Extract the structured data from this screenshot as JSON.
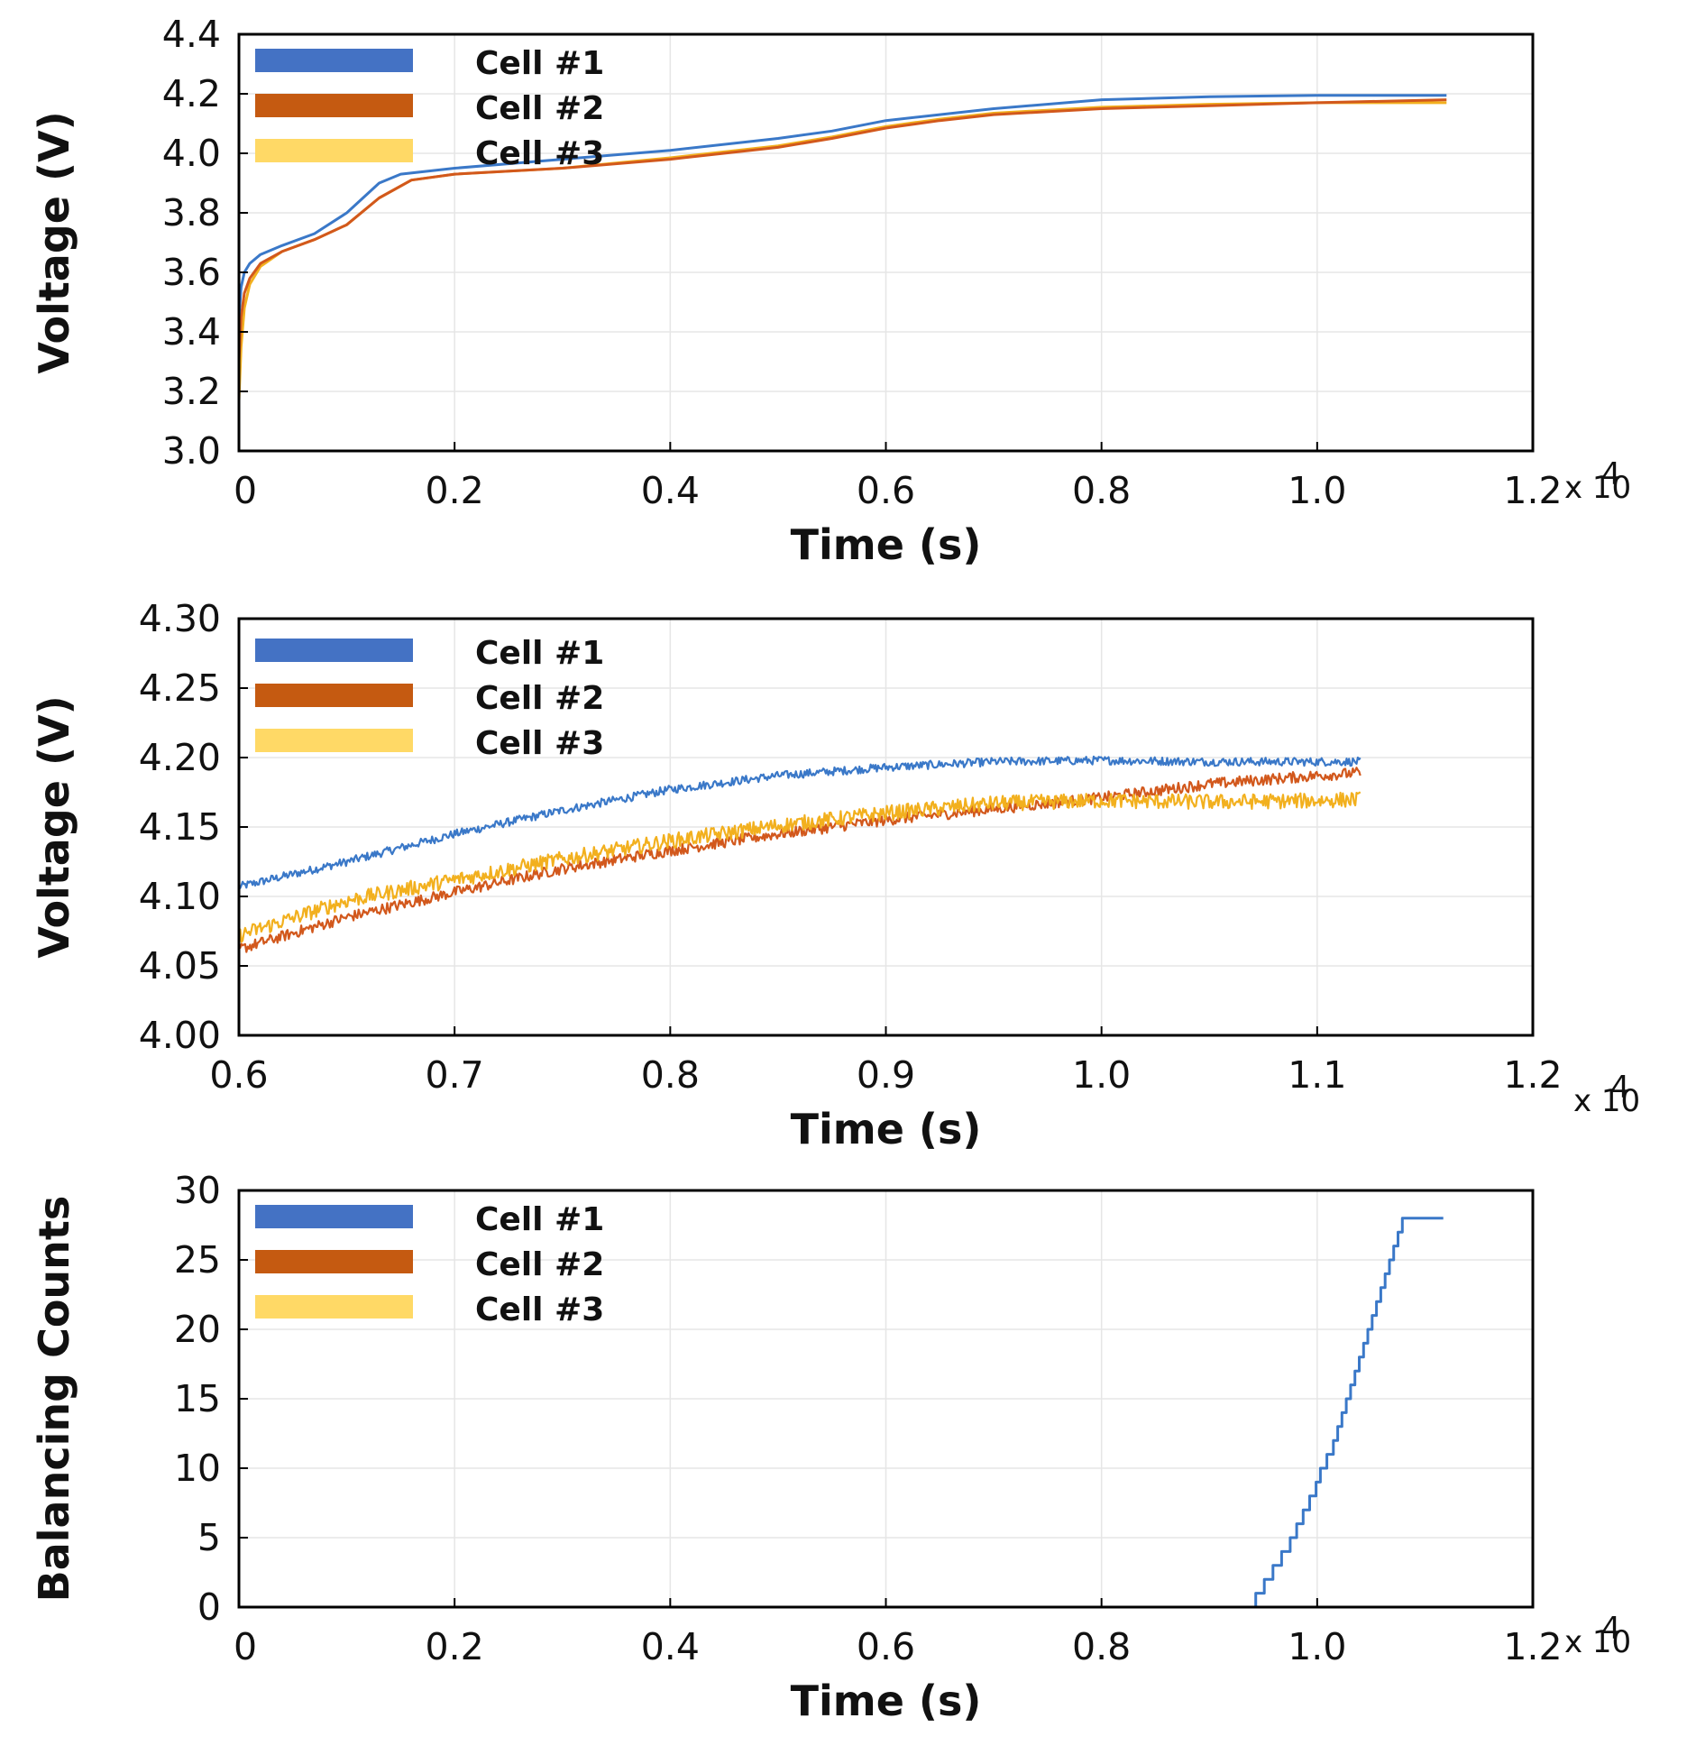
{
  "colors": {
    "cell1": "#3a78c8",
    "cell2": "#d2581c",
    "cell3": "#f2b01e",
    "legend_cell1": "#4472c4",
    "legend_cell2": "#c55a11",
    "legend_cell3": "#ffd966"
  },
  "chart_data": [
    {
      "type": "line",
      "title": "",
      "xlabel": "Time  (s)",
      "ylabel": "Voltage (V)",
      "xlim": [
        0,
        1.2
      ],
      "ylim": [
        3.0,
        4.4
      ],
      "x_multiplier": "x 10",
      "x_multiplier_exp": "4",
      "xticks": [
        0,
        0.2,
        0.4,
        0.6,
        0.8,
        1.0,
        1.2
      ],
      "xtick_labels": [
        "0",
        "0.2",
        "0.4",
        "0.6",
        "0.8",
        "1.0",
        "1.2"
      ],
      "yticks": [
        3.0,
        3.2,
        3.4,
        3.6,
        3.8,
        4.0,
        4.2,
        4.4
      ],
      "ytick_labels": [
        "3.0",
        "3.2",
        "3.4",
        "3.6",
        "3.8",
        "4.0",
        "4.2",
        "4.4"
      ],
      "legend": [
        "Cell #1",
        "Cell #2",
        "Cell #3"
      ],
      "legend_position": "top-left",
      "grid": true,
      "series": [
        {
          "name": "Cell #1",
          "x": [
            0,
            0.002,
            0.005,
            0.01,
            0.02,
            0.04,
            0.07,
            0.1,
            0.13,
            0.15,
            0.2,
            0.3,
            0.4,
            0.5,
            0.55,
            0.6,
            0.65,
            0.7,
            0.8,
            0.9,
            1.0,
            1.12
          ],
          "y": [
            3.45,
            3.55,
            3.6,
            3.63,
            3.66,
            3.69,
            3.73,
            3.8,
            3.9,
            3.93,
            3.95,
            3.98,
            4.01,
            4.05,
            4.075,
            4.11,
            4.13,
            4.15,
            4.18,
            4.19,
            4.195,
            4.195
          ]
        },
        {
          "name": "Cell #2",
          "x": [
            0,
            0.002,
            0.005,
            0.01,
            0.02,
            0.04,
            0.07,
            0.1,
            0.13,
            0.16,
            0.2,
            0.3,
            0.4,
            0.5,
            0.55,
            0.6,
            0.65,
            0.7,
            0.8,
            0.9,
            1.0,
            1.12
          ],
          "y": [
            3.3,
            3.45,
            3.53,
            3.58,
            3.63,
            3.67,
            3.71,
            3.76,
            3.85,
            3.91,
            3.93,
            3.95,
            3.98,
            4.02,
            4.05,
            4.085,
            4.11,
            4.13,
            4.15,
            4.16,
            4.17,
            4.18
          ]
        },
        {
          "name": "Cell #3",
          "x": [
            0,
            0.002,
            0.005,
            0.01,
            0.02,
            0.04,
            0.07,
            0.1,
            0.13,
            0.16,
            0.2,
            0.3,
            0.4,
            0.5,
            0.55,
            0.6,
            0.65,
            0.7,
            0.8,
            0.9,
            1.0,
            1.12
          ],
          "y": [
            3.17,
            3.35,
            3.48,
            3.56,
            3.62,
            3.67,
            3.71,
            3.76,
            3.85,
            3.91,
            3.93,
            3.95,
            3.985,
            4.025,
            4.055,
            4.09,
            4.115,
            4.135,
            4.155,
            4.165,
            4.17,
            4.17
          ]
        }
      ]
    },
    {
      "type": "line",
      "title": "",
      "xlabel": "Time  (s)",
      "ylabel": "Voltage (V)",
      "xlim": [
        0.6,
        1.2
      ],
      "ylim": [
        4.0,
        4.3
      ],
      "x_multiplier": "x 10",
      "x_multiplier_exp": "4",
      "xticks": [
        0.6,
        0.7,
        0.8,
        0.9,
        1.0,
        1.1,
        1.2
      ],
      "xtick_labels": [
        "0.6",
        "0.7",
        "0.8",
        "0.9",
        "1.0",
        "1.1",
        "1.2"
      ],
      "yticks": [
        4.0,
        4.05,
        4.1,
        4.15,
        4.2,
        4.25,
        4.3
      ],
      "ytick_labels": [
        "4.00",
        "4.05",
        "4.10",
        "4.15",
        "4.20",
        "4.25",
        "4.30"
      ],
      "legend": [
        "Cell #1",
        "Cell #2",
        "Cell #3"
      ],
      "legend_position": "top-left",
      "grid": true,
      "series": [
        {
          "name": "Cell #1",
          "x": [
            0.6,
            0.65,
            0.7,
            0.75,
            0.8,
            0.85,
            0.9,
            0.95,
            1.0,
            1.05,
            1.1,
            1.12
          ],
          "y": [
            4.107,
            4.125,
            4.145,
            4.162,
            4.177,
            4.187,
            4.193,
            4.197,
            4.198,
            4.197,
            4.197,
            4.197
          ],
          "noise": 0.003
        },
        {
          "name": "Cell #2",
          "x": [
            0.6,
            0.65,
            0.7,
            0.75,
            0.8,
            0.85,
            0.9,
            0.95,
            1.0,
            1.05,
            1.1,
            1.12
          ],
          "y": [
            4.062,
            4.085,
            4.103,
            4.12,
            4.133,
            4.145,
            4.155,
            4.163,
            4.171,
            4.181,
            4.187,
            4.189
          ],
          "noise": 0.004
        },
        {
          "name": "Cell #3",
          "x": [
            0.6,
            0.65,
            0.7,
            0.75,
            0.8,
            0.85,
            0.9,
            0.95,
            1.0,
            1.05,
            1.1,
            1.12
          ],
          "y": [
            4.072,
            4.097,
            4.112,
            4.127,
            4.14,
            4.151,
            4.16,
            4.167,
            4.169,
            4.168,
            4.169,
            4.17
          ],
          "noise": 0.0055
        }
      ]
    },
    {
      "type": "line",
      "title": "",
      "xlabel": "Time  (s)",
      "ylabel": "Balancing Counts",
      "xlim": [
        0,
        1.2
      ],
      "ylim": [
        0,
        30
      ],
      "x_multiplier": "x 10",
      "x_multiplier_exp": "4",
      "xticks": [
        0,
        0.2,
        0.4,
        0.6,
        0.8,
        1.0,
        1.2
      ],
      "xtick_labels": [
        "0",
        "0.2",
        "0.4",
        "0.6",
        "0.8",
        "1.0",
        "1.2"
      ],
      "yticks": [
        0,
        5,
        10,
        15,
        20,
        25,
        30
      ],
      "ytick_labels": [
        "0",
        "5",
        "10",
        "15",
        "20",
        "25",
        "30"
      ],
      "legend": [
        "Cell #1",
        "Cell #2",
        "Cell #3"
      ],
      "legend_position": "top-left",
      "grid": true,
      "series": [
        {
          "name": "Cell #1",
          "step": true,
          "x": [
            0,
            0.943,
            0.951,
            0.959,
            0.967,
            0.975,
            0.981,
            0.987,
            0.993,
            0.999,
            1.003,
            1.009,
            1.015,
            1.019,
            1.023,
            1.027,
            1.031,
            1.035,
            1.039,
            1.043,
            1.047,
            1.051,
            1.055,
            1.059,
            1.063,
            1.067,
            1.071,
            1.075,
            1.079,
            1.085,
            1.091,
            1.097,
            1.103,
            1.109,
            1.117
          ],
          "y": [
            0,
            1,
            2,
            3,
            4,
            5,
            6,
            7,
            8,
            9,
            10,
            11,
            12,
            13,
            14,
            15,
            16,
            17,
            18,
            19,
            20,
            21,
            22,
            23,
            24,
            25,
            26,
            27,
            28,
            28,
            28,
            28,
            28,
            28,
            28
          ]
        },
        {
          "name": "Cell #2",
          "step": true,
          "x": [
            0,
            1.12
          ],
          "y": [
            0,
            0
          ]
        },
        {
          "name": "Cell #3",
          "step": true,
          "x": [
            0,
            1.12
          ],
          "y": [
            0,
            0
          ]
        }
      ]
    }
  ]
}
